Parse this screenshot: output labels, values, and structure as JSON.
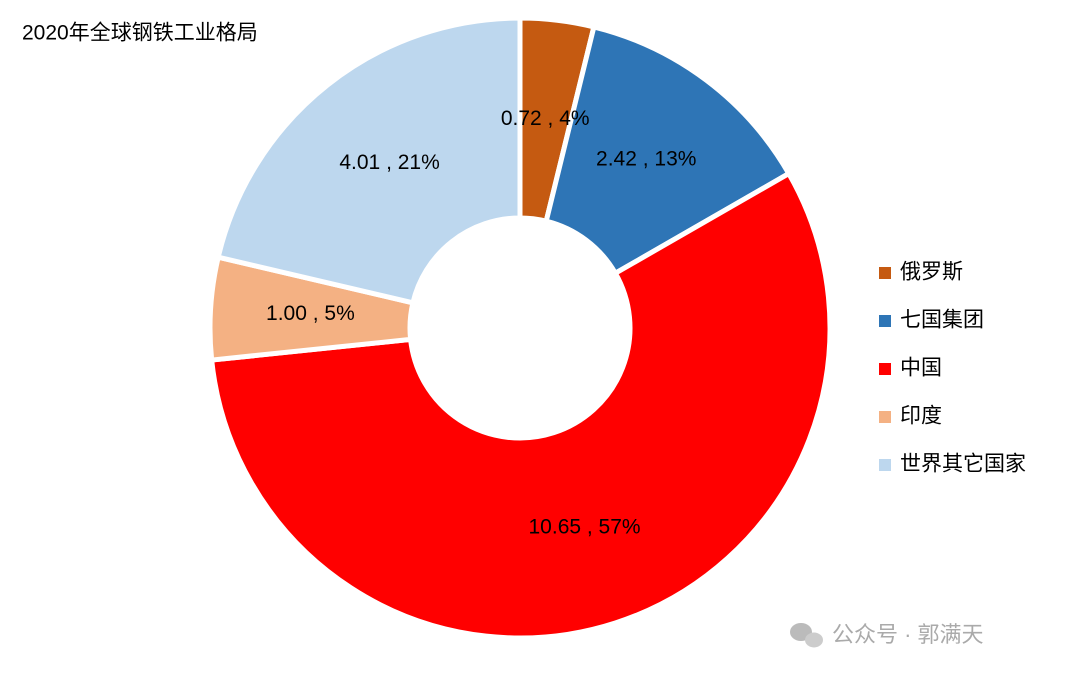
{
  "chart_data": {
    "type": "pie",
    "title": "2020年全球钢铁工业格局",
    "categories": [
      "俄罗斯",
      "七国集团",
      "中国",
      "印度",
      "世界其它国家"
    ],
    "values": [
      0.72,
      2.42,
      10.65,
      1.0,
      4.01
    ],
    "value_labels": [
      "0.72 , 4%",
      "2.42 , 13%",
      "10.65 , 57%",
      "1.00 , 5%",
      "4.01 , 21%"
    ],
    "colors": [
      "#c55a11",
      "#2e75b6",
      "#ff0000",
      "#f4b183",
      "#bdd7ee"
    ],
    "donut": true,
    "legend": "right",
    "watermark": "公众号 · 郭满天"
  }
}
